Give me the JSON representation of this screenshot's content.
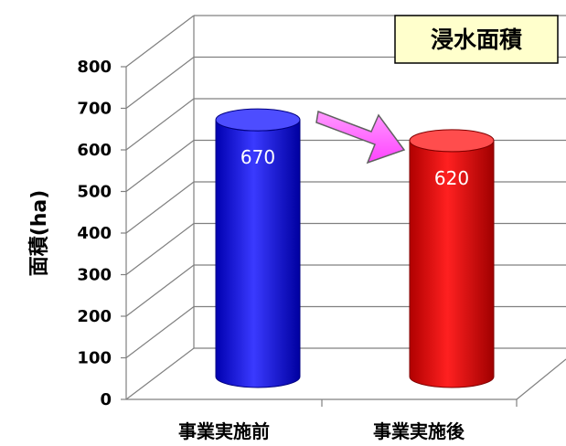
{
  "chart_data": {
    "type": "bar",
    "title": "浸水面積",
    "ylabel": "面積(ha)",
    "xlabel": "",
    "categories": [
      "事業実施前",
      "事業実施後"
    ],
    "values": [
      670,
      620
    ],
    "data_labels": [
      "670",
      "620"
    ],
    "ylim": [
      0,
      800
    ],
    "y_ticks": [
      "0",
      "100",
      "200",
      "300",
      "400",
      "500",
      "600",
      "700",
      "800"
    ],
    "grid": true,
    "bar_shape": "3d-cylinder",
    "colors": {
      "bars": [
        "#1a1aff",
        "#ff1a1a"
      ],
      "arrow": "#ff66ff",
      "title_box": "#ffffcc"
    }
  }
}
